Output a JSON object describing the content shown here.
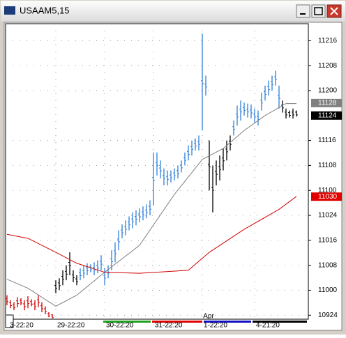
{
  "window_title": "USAAM5,15",
  "chart_data": {
    "type": "ohlc",
    "xlim": [
      -0.4,
      86.4
    ],
    "ylim": [
      109.71,
      112.67
    ],
    "yticks": [
      {
        "value": 112.5,
        "label": "11216"
      },
      {
        "value": 112.25,
        "label": "11208"
      },
      {
        "value": 112,
        "label": "11200"
      },
      {
        "value": 111.5,
        "label": "11116"
      },
      {
        "value": 111.25,
        "label": "11108"
      },
      {
        "value": 111,
        "label": "11100"
      },
      {
        "value": 110.75,
        "label": "11024"
      },
      {
        "value": 110.5,
        "label": "11016"
      },
      {
        "value": 110.25,
        "label": "11008"
      },
      {
        "value": 110,
        "label": "11000"
      },
      {
        "value": 109.75,
        "label": "10924"
      }
    ],
    "grid": true,
    "x_labels": [
      "3-22:20",
      "29-22:20",
      "30-22:20",
      "31-22:20",
      "1-22:20",
      "4-21:20"
    ],
    "month_label": "Apr",
    "markers": [
      {
        "value": 111.875,
        "label": "11128",
        "color": "#808080"
      },
      {
        "value": 111.75,
        "label": "11124",
        "color": "#000000"
      },
      {
        "value": 110.9375,
        "label": "11030",
        "color": "#e00000"
      }
    ],
    "series": [
      {
        "color": "#d00000",
        "x": [
          0,
          1,
          2,
          3,
          4,
          5,
          6,
          7,
          8,
          9,
          10,
          11,
          12,
          13
        ],
        "low": [
          109.85,
          109.82,
          109.8,
          109.83,
          109.85,
          109.8,
          109.82,
          109.84,
          109.8,
          109.83,
          109.78,
          109.76,
          109.73,
          109.72
        ],
        "high": [
          109.95,
          109.9,
          109.88,
          109.93,
          109.92,
          109.9,
          109.94,
          109.91,
          109.9,
          109.95,
          109.88,
          109.84,
          109.78,
          109.76
        ]
      },
      {
        "color": "#000000",
        "x": [
          14,
          15,
          16,
          17,
          18,
          19,
          20
        ],
        "low": [
          109.97,
          110.0,
          110.05,
          110.1,
          110.15,
          110.08,
          110.05
        ],
        "high": [
          110.1,
          110.12,
          110.2,
          110.25,
          110.38,
          110.2,
          110.15
        ]
      },
      {
        "color": "#2f7fd8",
        "x": [
          21,
          22,
          23,
          24,
          25,
          26,
          27,
          28,
          29,
          30,
          31,
          32,
          33,
          34,
          35,
          36,
          37,
          38,
          39,
          40,
          41,
          42,
          43,
          44,
          45,
          46,
          47,
          48,
          49,
          50,
          51,
          52,
          53,
          54,
          55,
          56,
          57
        ],
        "low": [
          110.1,
          110.12,
          110.15,
          110.18,
          110.15,
          110.17,
          110.2,
          110.05,
          110.12,
          110.2,
          110.28,
          110.4,
          110.52,
          110.55,
          110.6,
          110.62,
          110.65,
          110.68,
          110.7,
          110.72,
          110.75,
          110.85,
          111.15,
          111.12,
          111.05,
          111.05,
          111.08,
          111.1,
          111.12,
          111.18,
          111.25,
          111.3,
          111.35,
          111.4,
          111.4,
          111.6,
          111.95
        ],
        "high": [
          110.22,
          110.25,
          110.27,
          110.26,
          110.28,
          110.3,
          110.35,
          110.22,
          110.25,
          110.4,
          110.48,
          110.6,
          110.66,
          110.7,
          110.74,
          110.78,
          110.8,
          110.82,
          110.84,
          110.86,
          110.9,
          111.38,
          111.38,
          111.3,
          111.22,
          111.2,
          111.2,
          111.22,
          111.25,
          111.3,
          111.38,
          111.45,
          111.5,
          111.52,
          111.55,
          112.57,
          112.15
        ]
      },
      {
        "color": "#000000",
        "x": [
          58,
          59,
          60,
          61,
          62,
          63,
          64
        ],
        "low": [
          111.0,
          110.78,
          111.05,
          111.1,
          111.2,
          111.3,
          111.4
        ],
        "high": [
          111.5,
          111.25,
          111.3,
          111.35,
          111.42,
          111.5,
          111.55
        ]
      },
      {
        "color": "#2f7fd8",
        "x": [
          65,
          66,
          67,
          68,
          69,
          70,
          71,
          72,
          73,
          74,
          75,
          76,
          77,
          78
        ],
        "low": [
          111.55,
          111.65,
          111.7,
          111.75,
          111.73,
          111.72,
          111.68,
          111.65,
          111.8,
          111.9,
          111.95,
          112.0,
          112.05,
          111.82
        ],
        "high": [
          111.7,
          111.85,
          111.9,
          111.88,
          111.87,
          111.86,
          111.82,
          111.8,
          111.98,
          112.05,
          112.1,
          112.15,
          112.2,
          112.05
        ]
      },
      {
        "color": "#000000",
        "x": [
          79,
          80,
          81,
          82,
          83
        ],
        "low": [
          111.78,
          111.72,
          111.73,
          111.72,
          111.74
        ],
        "high": [
          111.9,
          111.82,
          111.8,
          111.82,
          111.8
        ]
      }
    ],
    "lines": [
      {
        "color": "#808080",
        "x": [
          0,
          6,
          14,
          20,
          28,
          38,
          48,
          56,
          62,
          68,
          74,
          80,
          83
        ],
        "values": [
          110.11,
          110.02,
          109.84,
          109.95,
          110.18,
          110.45,
          110.96,
          111.31,
          111.42,
          111.6,
          111.75,
          111.87,
          111.87
        ]
      },
      {
        "color": "#d00000",
        "x": [
          0,
          6,
          14,
          20,
          28,
          38,
          52,
          58,
          68,
          78,
          83
        ],
        "values": [
          110.56,
          110.52,
          110.38,
          110.27,
          110.18,
          110.17,
          110.2,
          110.38,
          110.61,
          110.81,
          110.94
        ]
      }
    ]
  }
}
